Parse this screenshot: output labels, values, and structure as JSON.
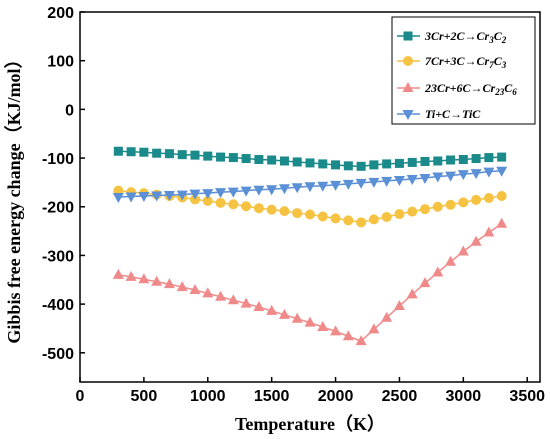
{
  "chart_data": {
    "type": "line",
    "xlabel": "Temperature（K）",
    "ylabel": "Gibbis free energy change（KJ/mol）",
    "xlim": [
      0,
      3600
    ],
    "ylim": [
      -560,
      200
    ],
    "xticks": [
      0,
      500,
      1000,
      1500,
      2000,
      2500,
      3000,
      3500
    ],
    "yticks": [
      200,
      100,
      0,
      -100,
      -200,
      -300,
      -400,
      -500
    ],
    "grid": false,
    "legend_position": "top-right",
    "x": [
      300,
      400,
      500,
      600,
      700,
      800,
      900,
      1000,
      1100,
      1200,
      1300,
      1400,
      1500,
      1600,
      1700,
      1800,
      1900,
      2000,
      2100,
      2200,
      2300,
      2400,
      2500,
      2600,
      2700,
      2800,
      2900,
      3000,
      3100,
      3200,
      3300
    ],
    "series": [
      {
        "name": "3Cr+2C→Cr3C2",
        "color": "#1a8a8a",
        "marker": "square",
        "values": [
          -86,
          -87,
          -88,
          -90,
          -91,
          -93,
          -94,
          -96,
          -98,
          -99,
          -101,
          -103,
          -104,
          -106,
          -108,
          -110,
          -112,
          -114,
          -116,
          -117,
          -114,
          -112,
          -111,
          -109,
          -107,
          -106,
          -104,
          -103,
          -101,
          -99,
          -98
        ]
      },
      {
        "name": "7Cr+3C→Cr7C3",
        "color": "#f5c242",
        "marker": "circle",
        "values": [
          -167,
          -170,
          -172,
          -175,
          -178,
          -181,
          -185,
          -188,
          -192,
          -195,
          -199,
          -203,
          -206,
          -209,
          -213,
          -216,
          -220,
          -224,
          -228,
          -232,
          -226,
          -221,
          -215,
          -210,
          -205,
          -200,
          -196,
          -191,
          -186,
          -182,
          -178
        ]
      },
      {
        "name": "23Cr+6C→Cr23C6",
        "color": "#f08a8a",
        "marker": "triangle-up",
        "values": [
          -340,
          -344,
          -349,
          -354,
          -359,
          -365,
          -371,
          -378,
          -385,
          -392,
          -399,
          -406,
          -414,
          -422,
          -430,
          -438,
          -447,
          -456,
          -466,
          -476,
          -452,
          -428,
          -404,
          -380,
          -357,
          -335,
          -313,
          -292,
          -272,
          -253,
          -235
        ]
      },
      {
        "name": "Ti+C→TiC",
        "color": "#5b8fd6",
        "marker": "triangle-down",
        "values": [
          -180,
          -179,
          -178,
          -177,
          -176,
          -175,
          -173,
          -172,
          -170,
          -169,
          -167,
          -165,
          -164,
          -162,
          -160,
          -158,
          -157,
          -155,
          -153,
          -151,
          -149,
          -147,
          -145,
          -143,
          -141,
          -138,
          -136,
          -133,
          -131,
          -128,
          -126
        ]
      }
    ],
    "legend": [
      {
        "base": "3Cr+2C→Cr",
        "sub1": "3",
        "mid": "C",
        "sub2": "2"
      },
      {
        "base": "7Cr+3C→Cr",
        "sub1": "7",
        "mid": "C",
        "sub2": "3"
      },
      {
        "base": "23Cr+6C→Cr",
        "sub1": "23",
        "mid": "C",
        "sub2": "6"
      },
      {
        "base": "Ti+C→TiC",
        "sub1": "",
        "mid": "",
        "sub2": ""
      }
    ]
  }
}
